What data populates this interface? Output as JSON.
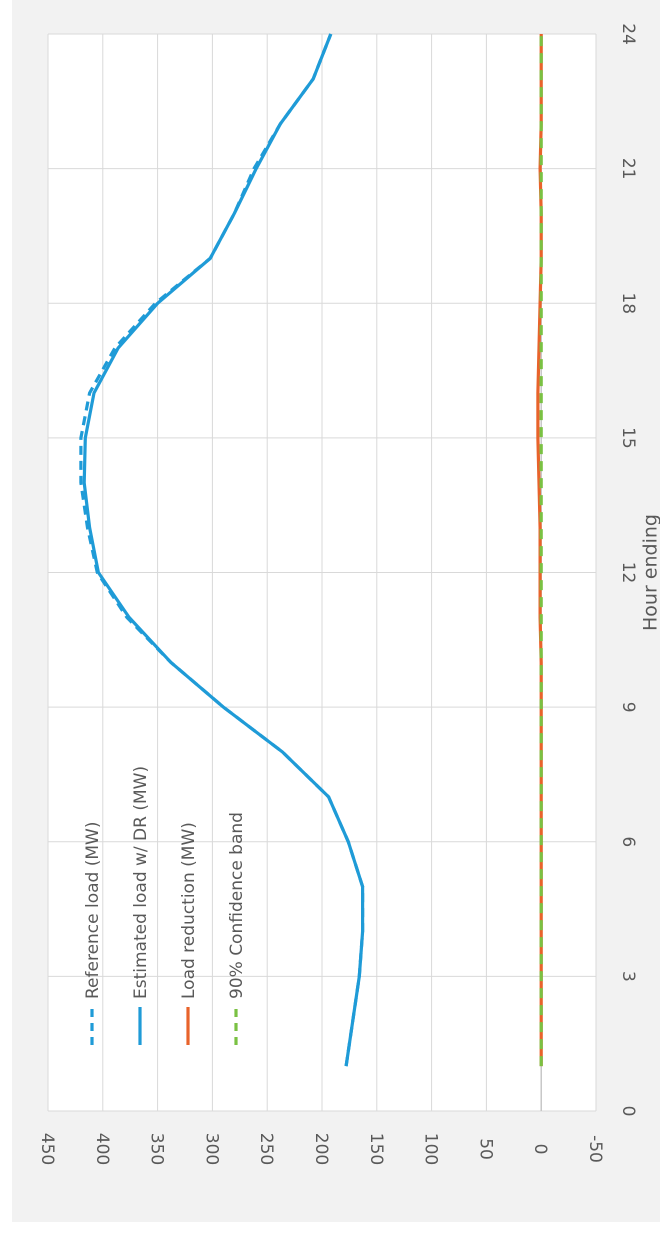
{
  "colors": {
    "background": "#f2f2f2",
    "plot_area": "#ffffff",
    "grid": "#d9d9d9",
    "text": "#595959",
    "reference_load": "#1f9bd7",
    "estimated_load": "#1f9bd7",
    "load_reduction": "#e8632b",
    "confidence_band": "#7ac143"
  },
  "chart_data": {
    "type": "line",
    "orientation": "rotated-90-clockwise",
    "xlabel": "Hour ending",
    "ylabel": "",
    "x_ticks": [
      "0",
      "3",
      "6",
      "9",
      "12",
      "15",
      "18",
      "21",
      "24"
    ],
    "y_ticks": [
      "-50",
      "0",
      "50",
      "100",
      "150",
      "200",
      "250",
      "300",
      "350",
      "400",
      "450"
    ],
    "xlim": [
      0,
      24
    ],
    "ylim": [
      -50,
      450
    ],
    "grid": true,
    "legend_position": "bottom-left",
    "x": [
      1,
      2,
      3,
      4,
      5,
      6,
      7,
      8,
      9,
      10,
      11,
      12,
      13,
      14,
      15,
      16,
      17,
      18,
      19,
      20,
      21,
      22,
      23,
      24
    ],
    "series": [
      {
        "name": "Reference load (MW)",
        "style": "dashed",
        "color_key": "reference_load",
        "values": [
          178,
          172,
          166,
          163,
          163,
          176,
          194,
          236,
          290,
          338,
          378,
          405,
          414,
          420,
          420,
          412,
          389,
          352,
          302,
          280,
          262,
          238,
          208,
          192
        ]
      },
      {
        "name": "Estimated load w/ DR (MW)",
        "style": "solid",
        "color_key": "estimated_load",
        "values": [
          178,
          172,
          166,
          163,
          163,
          176,
          194,
          236,
          290,
          338,
          376,
          404,
          412,
          417,
          416,
          408,
          386,
          350,
          302,
          280,
          260,
          238,
          208,
          192
        ]
      },
      {
        "name": "Load reduction (MW)",
        "style": "solid",
        "color_key": "load_reduction",
        "values": [
          0,
          0,
          0,
          0,
          0,
          0,
          0,
          0,
          0,
          0,
          1,
          1,
          1,
          2,
          3,
          3,
          2,
          1,
          0,
          0,
          1,
          0,
          0,
          0
        ]
      },
      {
        "name": "90% Confidence band",
        "style": "dashed",
        "color_key": "confidence_band",
        "values": [
          0,
          0,
          0,
          0,
          0,
          0,
          0,
          0,
          0,
          0,
          0,
          0,
          0,
          0,
          0,
          0,
          0,
          0,
          0,
          0,
          0,
          0,
          0,
          0
        ]
      }
    ]
  }
}
